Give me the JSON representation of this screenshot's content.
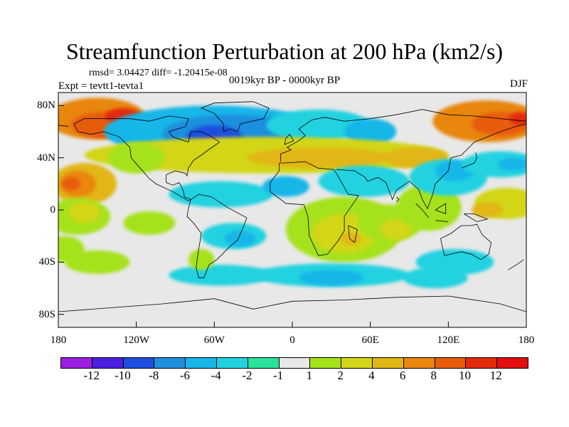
{
  "title": "Streamfunction Perturbation at 200 hPa (km2/s)",
  "stats_line": "rmsd= 3.04427 diff= -1.20415e-08",
  "experiment": "Expt = tevtt1-tevta1",
  "period": "0019kyr BP - 0000kyr BP",
  "season": "DJF",
  "map_data": {
    "variable": "streamfunction perturbation",
    "level": "200 hPa",
    "units": "km2/s",
    "lon_range": [
      -180,
      180
    ],
    "lat_range": [
      -90,
      90
    ],
    "y_ticks": [
      "80N",
      "40N",
      "0",
      "40S",
      "80S"
    ],
    "x_ticks": [
      "180",
      "120W",
      "60W",
      "0",
      "60E",
      "120E",
      "180"
    ],
    "contour_levels": [
      "-12",
      "-10",
      "-8",
      "-6",
      "-4",
      "-2",
      "-1",
      "1",
      "2",
      "4",
      "6",
      "8",
      "10",
      "12"
    ],
    "colors": [
      "#9a1fe3",
      "#4b1ee0",
      "#1f4fde",
      "#1f8fde",
      "#17b6e8",
      "#21d2e0",
      "#2ae29a",
      "#e8e8e8",
      "#a6e21a",
      "#d2d616",
      "#e2b612",
      "#e8860e",
      "#e85c0a",
      "#e32b0a",
      "#e30e0e"
    ]
  }
}
